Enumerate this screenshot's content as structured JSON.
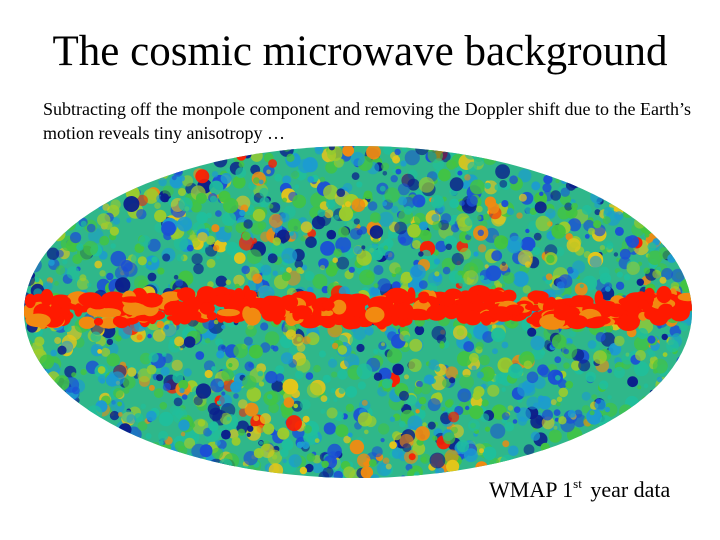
{
  "slide": {
    "title": "The cosmic microwave background",
    "subtitle": "Subtracting off the monpole component and removing the Doppler shift due to the Earth’s motion reveals tiny anisotropy …",
    "caption": {
      "prefix": "WMAP 1",
      "superscript": "st",
      "suffix": " year data"
    }
  },
  "skymap": {
    "projection": "Mollweide all-sky",
    "palette": [
      "#0b1f8c",
      "#1b4fd6",
      "#1c9bd1",
      "#1fbf9c",
      "#43c441",
      "#9ccc2c",
      "#e6c619",
      "#f28a10",
      "#ff1a00"
    ],
    "galactic_plane_color": "#ff1a00"
  }
}
